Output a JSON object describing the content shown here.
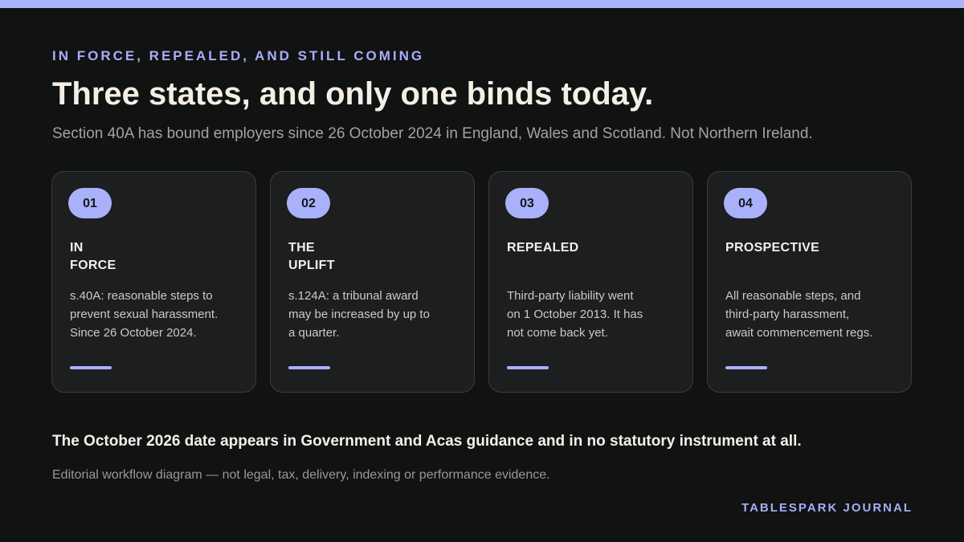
{
  "eyebrow": "IN FORCE, REPEALED, AND STILL COMING",
  "headline": "Three states, and only one binds today.",
  "subhead": "Section 40A has bound employers since 26 October 2024 in England, Wales and Scotland. Not Northern Ireland.",
  "cards": [
    {
      "number": "01",
      "title_line1": "IN",
      "title_line2": "FORCE",
      "body_lines": [
        "s.40A: reasonable steps to",
        "prevent sexual harassment.",
        "Since 26 October 2024."
      ]
    },
    {
      "number": "02",
      "title_line1": "THE",
      "title_line2": "UPLIFT",
      "body_lines": [
        "s.124A: a tribunal award",
        "may be increased by up to",
        "a quarter."
      ]
    },
    {
      "number": "03",
      "title_line1": "REPEALED",
      "title_line2": "",
      "body_lines": [
        "Third-party liability went",
        "on 1 October 2013. It has",
        "not come back yet."
      ]
    },
    {
      "number": "04",
      "title_line1": "PROSPECTIVE",
      "title_line2": "",
      "body_lines": [
        "All reasonable steps, and",
        "third-party harassment,",
        "await commencement regs."
      ]
    }
  ],
  "takeaway": "The October 2026 date appears in Government and Acas guidance and in no statutory instrument at all.",
  "disclaimer": "Editorial workflow diagram — not legal, tax, delivery, indexing or performance evidence.",
  "brand": "TABLESPARK JOURNAL",
  "colors": {
    "background": "#111212",
    "accent": "#a9b1fb",
    "card_background": "#1c1e1f",
    "card_border": "#3a3d3e",
    "headline": "#f3efe5"
  }
}
